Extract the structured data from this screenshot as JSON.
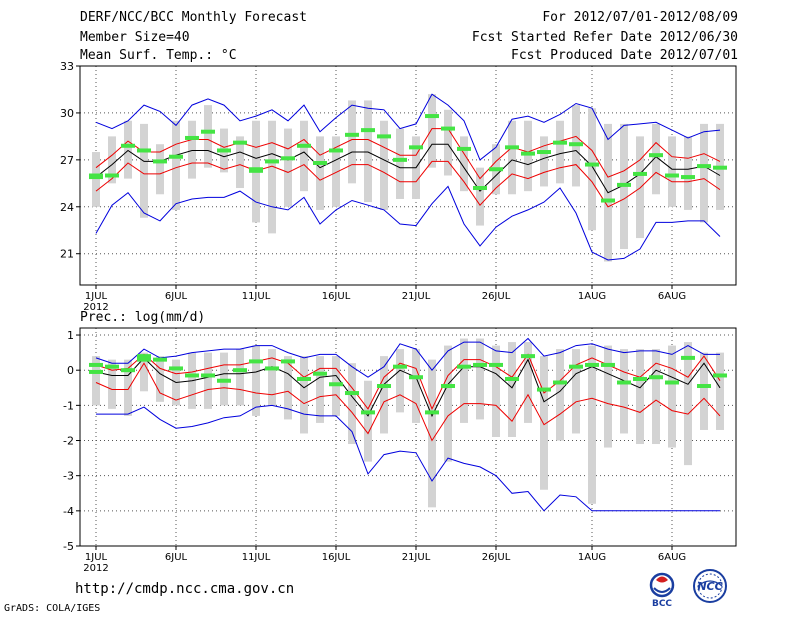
{
  "header": {
    "title": "DERF/NCC/BCC Monthly Forecast",
    "member_size": "Member Size=40",
    "variable": "Mean Surf. Temp.: °C",
    "period": "For 2012/07/01-2012/08/09",
    "fcst_started": "Fcst Started Refer Date 2012/06/30",
    "fcst_produced": "Fcst Produced Date 2012/07/01"
  },
  "footer": {
    "url": "http://cmdp.ncc.cma.gov.cn",
    "grads": "GrADS: COLA/IGES",
    "logo_bcc": "BCC",
    "logo_ncc": "NCC"
  },
  "colors": {
    "box": "#d3d3d3",
    "member": "#44e444",
    "mean": "#000000",
    "inner_band": "#ee0000",
    "outer_band": "#0000dd",
    "grid": "#555555"
  },
  "chart_data": [
    {
      "type": "line",
      "title": "Mean Surf. Temp.: °C",
      "x_tick_labels": [
        "1JUL",
        "6JUL",
        "11JUL",
        "16JUL",
        "21JUL",
        "26JUL",
        "1AUG",
        "6AUG"
      ],
      "x_tick_days": [
        1,
        6,
        11,
        16,
        21,
        26,
        32,
        37
      ],
      "x_year_label": "2012",
      "ylim": [
        19,
        33
      ],
      "y_ticks": [
        21,
        24,
        27,
        30,
        33
      ],
      "days": [
        1,
        2,
        3,
        4,
        5,
        6,
        7,
        8,
        9,
        10,
        11,
        12,
        13,
        14,
        15,
        16,
        17,
        18,
        19,
        20,
        21,
        22,
        23,
        24,
        25,
        26,
        27,
        28,
        29,
        30,
        31,
        32,
        33,
        34,
        35,
        36,
        37,
        38,
        39,
        40
      ],
      "mean": [
        25.9,
        26.7,
        27.6,
        26.9,
        26.9,
        27.3,
        27.6,
        27.6,
        27.2,
        27.5,
        27.1,
        27.4,
        27.0,
        27.5,
        26.5,
        27.0,
        27.5,
        27.5,
        27.0,
        26.5,
        26.5,
        28.0,
        28.0,
        26.5,
        25.0,
        26.0,
        27.0,
        26.7,
        27.1,
        27.4,
        27.6,
        26.6,
        24.9,
        25.4,
        26.1,
        27.2,
        26.4,
        26.4,
        26.6,
        26.0
      ],
      "inner_upper": [
        26.5,
        27.3,
        28.2,
        27.5,
        27.5,
        28.0,
        28.3,
        28.3,
        27.8,
        28.1,
        27.8,
        28.1,
        27.7,
        28.3,
        27.3,
        27.8,
        28.3,
        28.3,
        27.8,
        27.3,
        27.3,
        29.0,
        29.0,
        27.4,
        25.8,
        26.9,
        27.8,
        27.5,
        27.9,
        28.2,
        28.5,
        27.6,
        25.9,
        26.3,
        27.0,
        28.1,
        27.2,
        27.1,
        27.4,
        26.9
      ],
      "inner_lower": [
        25.0,
        25.8,
        26.8,
        26.1,
        26.1,
        26.5,
        26.8,
        26.8,
        26.4,
        26.7,
        26.3,
        26.6,
        26.2,
        26.7,
        25.7,
        26.2,
        26.7,
        26.7,
        26.2,
        25.6,
        25.6,
        26.9,
        26.9,
        25.6,
        24.1,
        25.2,
        26.1,
        25.8,
        26.2,
        26.5,
        26.7,
        25.6,
        24.0,
        24.5,
        25.2,
        26.2,
        25.6,
        25.6,
        25.8,
        25.1
      ],
      "outer_upper": [
        29.4,
        29.0,
        29.5,
        30.5,
        30.1,
        29.2,
        30.5,
        30.9,
        30.5,
        29.5,
        29.8,
        30.2,
        29.5,
        30.5,
        28.8,
        29.7,
        30.5,
        30.3,
        30.2,
        29.0,
        29.3,
        31.2,
        30.5,
        29.5,
        27.0,
        27.8,
        29.6,
        29.8,
        29.4,
        29.9,
        30.6,
        30.3,
        28.3,
        29.2,
        29.3,
        29.4,
        28.9,
        28.4,
        28.8,
        28.9
      ],
      "outer_lower": [
        22.3,
        24.1,
        24.9,
        23.6,
        23.1,
        24.2,
        24.5,
        24.6,
        24.6,
        25.0,
        24.3,
        24.0,
        23.8,
        24.6,
        22.9,
        23.8,
        24.4,
        24.1,
        23.8,
        22.9,
        22.8,
        24.2,
        25.3,
        22.9,
        21.5,
        22.7,
        23.4,
        23.8,
        24.3,
        25.2,
        23.6,
        21.1,
        20.6,
        20.7,
        21.3,
        23.0,
        23.0,
        23.1,
        23.1,
        22.1
      ],
      "box_upper": [
        27.5,
        28.5,
        29.5,
        29.3,
        28.0,
        29.5,
        29.5,
        30.5,
        29.0,
        28.5,
        29.5,
        29.5,
        29.0,
        29.5,
        28.5,
        28.5,
        30.8,
        30.8,
        29.5,
        29.0,
        28.5,
        31.2,
        30.2,
        28.5,
        26.5,
        28.0,
        29.5,
        29.5,
        28.5,
        29.5,
        30.5,
        30.3,
        29.3,
        29.3,
        28.5,
        29.3,
        28.5,
        28.5,
        29.3,
        29.3
      ],
      "box_lower": [
        24.0,
        25.5,
        25.8,
        23.3,
        24.8,
        23.8,
        25.8,
        26.5,
        26.2,
        25.2,
        23.0,
        22.3,
        24.0,
        25.0,
        23.8,
        24.0,
        25.5,
        24.3,
        23.8,
        24.5,
        24.5,
        26.5,
        26.0,
        25.0,
        22.8,
        24.8,
        24.8,
        25.0,
        25.3,
        25.5,
        25.3,
        22.5,
        20.5,
        21.3,
        22.0,
        24.8,
        24.0,
        23.8,
        23.0,
        23.8
      ],
      "members_top": [
        26.0,
        26.0,
        27.9,
        27.6,
        26.9,
        27.2,
        28.4,
        28.8,
        27.6,
        28.1,
        26.4,
        26.9,
        27.1,
        27.9,
        26.8,
        27.6,
        28.6,
        28.9,
        28.5,
        27.0,
        27.8,
        29.8,
        29.0,
        27.7,
        25.2,
        26.4,
        27.8,
        27.4,
        27.5,
        28.1,
        28.0,
        26.7,
        24.4,
        25.4,
        26.1,
        27.3,
        26.0,
        25.9,
        26.6,
        26.5
      ],
      "members_bottom": [
        25.9,
        null,
        null,
        null,
        null,
        null,
        null,
        null,
        null,
        null,
        26.3,
        null,
        null,
        null,
        null,
        null,
        null,
        null,
        null,
        null,
        null,
        null,
        null,
        null,
        null,
        null,
        null,
        null,
        null,
        null,
        null,
        null,
        null,
        null,
        null,
        null,
        null,
        null,
        null,
        null
      ]
    },
    {
      "type": "line",
      "title": "Prec.: log(mm/d)",
      "x_tick_labels": [
        "1JUL",
        "6JUL",
        "11JUL",
        "16JUL",
        "21JUL",
        "26JUL",
        "1AUG",
        "6AUG"
      ],
      "x_tick_days": [
        1,
        6,
        11,
        16,
        21,
        26,
        32,
        37
      ],
      "x_year_label": "2012",
      "ylim": [
        -5,
        1.2
      ],
      "y_ticks": [
        -5,
        -4,
        -3,
        -2,
        -1,
        0,
        1
      ],
      "days": [
        1,
        2,
        3,
        4,
        5,
        6,
        7,
        8,
        9,
        10,
        11,
        12,
        13,
        14,
        15,
        16,
        17,
        18,
        19,
        20,
        21,
        22,
        23,
        24,
        25,
        26,
        27,
        28,
        29,
        30,
        31,
        32,
        33,
        34,
        35,
        36,
        37,
        38,
        39,
        40
      ],
      "mean": [
        -0.05,
        -0.15,
        -0.15,
        0.35,
        -0.1,
        -0.35,
        -0.3,
        -0.2,
        -0.1,
        -0.1,
        -0.05,
        0.1,
        -0.1,
        -0.5,
        -0.2,
        -0.15,
        -0.75,
        -1.3,
        -0.4,
        0.0,
        -0.2,
        -1.3,
        -0.4,
        0.1,
        0.1,
        -0.1,
        -0.5,
        0.3,
        -0.9,
        -0.6,
        -0.1,
        0.1,
        -0.1,
        -0.3,
        -0.5,
        0.0,
        -0.2,
        -0.4,
        0.2,
        -0.5
      ],
      "inner_upper": [
        0.15,
        0.0,
        0.05,
        0.45,
        0.05,
        -0.1,
        -0.05,
        0.05,
        0.15,
        0.15,
        0.25,
        0.35,
        0.2,
        -0.2,
        0.05,
        0.05,
        -0.5,
        -1.1,
        -0.2,
        0.2,
        0.05,
        -1.1,
        -0.15,
        0.3,
        0.3,
        0.1,
        -0.2,
        0.45,
        -0.65,
        -0.3,
        0.15,
        0.35,
        0.15,
        -0.05,
        -0.2,
        0.2,
        0.05,
        -0.2,
        0.4,
        -0.3
      ],
      "inner_lower": [
        -0.35,
        -0.55,
        -0.55,
        0.2,
        -0.65,
        -0.85,
        -0.7,
        -0.55,
        -0.5,
        -0.55,
        -0.65,
        -0.7,
        -0.6,
        -0.95,
        -0.75,
        -0.7,
        -1.2,
        -1.8,
        -0.9,
        -0.7,
        -0.95,
        -2.0,
        -1.3,
        -0.95,
        -0.95,
        -1.0,
        -1.45,
        -0.7,
        -1.55,
        -1.25,
        -0.9,
        -0.8,
        -0.95,
        -1.05,
        -1.2,
        -0.85,
        -1.15,
        -1.25,
        -0.8,
        -1.3
      ],
      "outer_upper": [
        0.35,
        0.2,
        0.2,
        0.6,
        0.35,
        0.4,
        0.5,
        0.55,
        0.6,
        0.6,
        0.7,
        0.7,
        0.5,
        0.35,
        0.45,
        0.45,
        0.1,
        -0.2,
        0.1,
        0.75,
        0.6,
        0.0,
        0.55,
        0.8,
        0.8,
        0.55,
        0.5,
        0.9,
        0.4,
        0.5,
        0.7,
        0.75,
        0.6,
        0.5,
        0.55,
        0.55,
        0.45,
        0.7,
        0.45,
        0.45
      ],
      "outer_lower": [
        -1.25,
        -1.25,
        -1.25,
        -1.05,
        -1.4,
        -1.65,
        -1.6,
        -1.5,
        -1.35,
        -1.3,
        -1.05,
        -1.0,
        -1.1,
        -1.25,
        -1.3,
        -1.3,
        -1.75,
        -2.95,
        -2.4,
        -2.3,
        -2.35,
        -3.15,
        -2.5,
        -2.65,
        -2.75,
        -3.0,
        -3.5,
        -3.45,
        -4.0,
        -3.55,
        -3.6,
        -4.0,
        -4.0,
        -4.0,
        -4.0,
        -4.0,
        -4.0,
        -4.0,
        -4.0,
        -4.0
      ],
      "box_upper": [
        0.4,
        0.3,
        0.3,
        0.5,
        0.4,
        0.3,
        0.5,
        0.5,
        0.5,
        0.6,
        0.7,
        0.6,
        0.4,
        0.4,
        0.4,
        0.4,
        0.2,
        -0.3,
        0.4,
        0.6,
        0.6,
        0.3,
        0.7,
        0.9,
        0.9,
        0.7,
        0.8,
        0.8,
        0.4,
        0.6,
        0.6,
        0.7,
        0.7,
        0.6,
        0.6,
        0.6,
        0.7,
        0.8,
        0.5,
        0.5
      ],
      "box_lower": [
        -1.0,
        -1.1,
        -1.3,
        -0.6,
        -0.9,
        -1.0,
        -1.1,
        -1.1,
        -1.0,
        -1.0,
        -1.3,
        -1.0,
        -1.4,
        -1.8,
        -1.5,
        -1.3,
        -2.1,
        -2.6,
        -1.8,
        -1.2,
        -1.5,
        -3.9,
        -2.6,
        -1.5,
        -1.4,
        -1.9,
        -1.9,
        -1.5,
        -3.4,
        -2.0,
        -1.8,
        -3.8,
        -2.2,
        -1.8,
        -2.1,
        -2.1,
        -2.2,
        -2.7,
        -1.7,
        -1.7
      ],
      "members_top": [
        0.15,
        0.1,
        0.0,
        0.4,
        0.3,
        0.05,
        -0.15,
        -0.15,
        -0.3,
        0.0,
        0.25,
        0.05,
        0.25,
        -0.25,
        -0.1,
        -0.4,
        -0.65,
        -1.2,
        -0.45,
        0.1,
        -0.2,
        -1.2,
        -0.45,
        0.1,
        0.15,
        0.15,
        -0.25,
        0.4,
        -0.55,
        -0.35,
        0.1,
        0.15,
        0.15,
        -0.35,
        -0.25,
        -0.2,
        -0.35,
        0.35,
        -0.45,
        -0.15
      ],
      "members_bottom": [
        -0.05,
        null,
        null,
        0.3,
        null,
        null,
        null,
        null,
        null,
        null,
        null,
        null,
        null,
        null,
        null,
        null,
        null,
        null,
        null,
        null,
        null,
        null,
        null,
        null,
        null,
        null,
        null,
        null,
        null,
        null,
        null,
        null,
        null,
        null,
        null,
        null,
        null,
        null,
        null,
        null
      ]
    }
  ]
}
